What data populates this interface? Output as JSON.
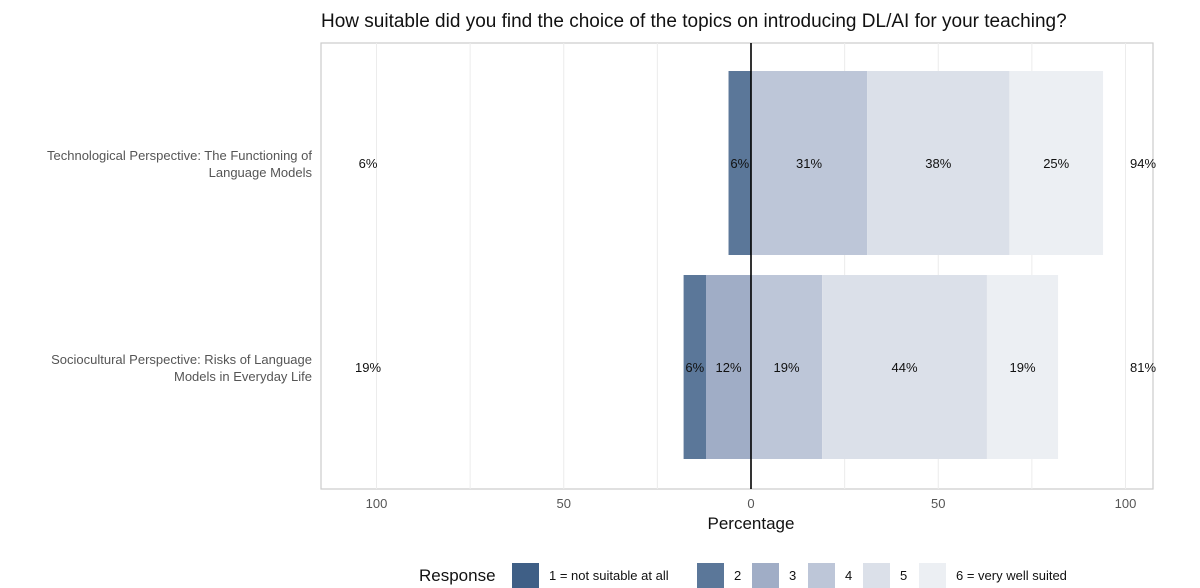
{
  "chart_data": {
    "type": "bar",
    "orientation": "horizontal",
    "stacking": "diverging",
    "title": "How suitable did you find the choice of the topics on introducing DL/AI for your teaching?",
    "xlabel": "Percentage",
    "ylabel": "",
    "xlim": [
      -100,
      100
    ],
    "x_ticks": [
      -100,
      -50,
      0,
      50,
      100
    ],
    "x_tick_labels": [
      "100",
      "50",
      "0",
      "50",
      "100"
    ],
    "grid": true,
    "legend_position": "bottom",
    "legend_title": "Response",
    "categories": [
      "Technological Perspective: The Functioning of Language Models",
      "Sociocultural Perspective: Risks of Language Models in Everyday Life"
    ],
    "category_label_lines": [
      [
        "Technological Perspective: The Functioning of",
        "Language Models"
      ],
      [
        "Sociocultural Perspective: Risks of Language",
        "Models in Everyday Life"
      ]
    ],
    "series": [
      {
        "name": "1 = not suitable at all",
        "color": "#3f5f86",
        "side": "negative",
        "values": [
          0,
          0
        ]
      },
      {
        "name": "2",
        "color": "#5b7799",
        "side": "negative",
        "values": [
          6,
          6
        ]
      },
      {
        "name": "3",
        "color": "#a0adc6",
        "side": "negative",
        "values": [
          0,
          12
        ]
      },
      {
        "name": "4",
        "color": "#bdc6d8",
        "side": "positive",
        "values": [
          31,
          19
        ]
      },
      {
        "name": "5",
        "color": "#dbe0e9",
        "side": "positive",
        "values": [
          38,
          44
        ]
      },
      {
        "name": "6 = very well suited",
        "color": "#eceff3",
        "side": "positive",
        "values": [
          25,
          19
        ]
      }
    ],
    "negative_totals": [
      "6%",
      "19%"
    ],
    "positive_totals": [
      "94%",
      "81%"
    ]
  }
}
